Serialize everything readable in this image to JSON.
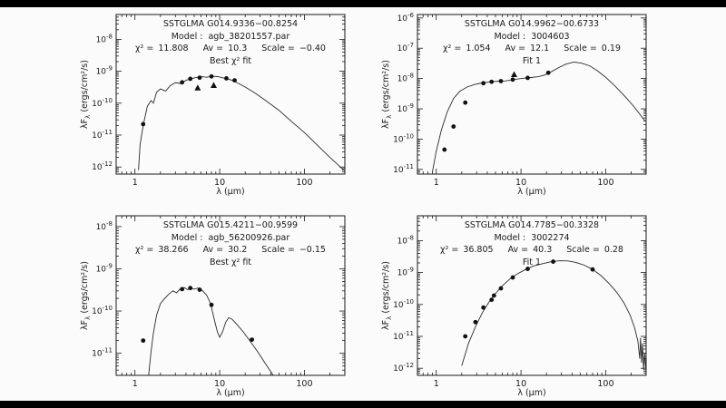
{
  "colors": {
    "background": "#fbfbfb",
    "letterbox": "#000000",
    "axis": "#1a1a1a",
    "curve": "#2a2a2a",
    "marker": "#111111"
  },
  "shared": {
    "xlabel": "λ (μm)",
    "ylabel_pre": "λF",
    "ylabel_sub": "λ",
    "ylabel_post": " (ergs/cm²/s)"
  },
  "panels": [
    {
      "title": "SSTGLMA G014.9336−00.8254",
      "model_label": "Model :",
      "model": "agb_38201557.par",
      "chi2_label": "χ² =",
      "chi2": "11.808",
      "av_label": "Av =",
      "av": "10.3",
      "scale_label": "Scale =",
      "scale": "−0.40",
      "fit_label": "Best χ² fit"
    },
    {
      "title": "SSTGLMA G014.9962−00.6733",
      "model_label": "Model :",
      "model": "3004603",
      "chi2_label": "χ² =",
      "chi2": "1.054",
      "av_label": "Av =",
      "av": "12.1",
      "scale_label": "Scale =",
      "scale": "0.19",
      "fit_label": "Fit 1"
    },
    {
      "title": "SSTGLMA G015.4211−00.9599",
      "model_label": "Model :",
      "model": "agb_56200926.par",
      "chi2_label": "χ² =",
      "chi2": "38.266",
      "av_label": "Av =",
      "av": "30.2",
      "scale_label": "Scale =",
      "scale": "−0.15",
      "fit_label": "Best χ² fit"
    },
    {
      "title": "SSTGLMA G014.7785−00.3328",
      "model_label": "Model :",
      "model": "3002274",
      "chi2_label": "χ² =",
      "chi2": "36.805",
      "av_label": "Av =",
      "av": "40.3",
      "scale_label": "Scale =",
      "scale": "0.28",
      "fit_label": "Fit 1"
    }
  ],
  "chart_data": [
    {
      "type": "line",
      "title": "SSTGLMA G014.9336−00.8254",
      "xlabel": "λ (μm)",
      "ylabel": "λFλ (ergs/cm²/s)",
      "xscale": "log",
      "yscale": "log",
      "xlim": [
        0.6,
        300
      ],
      "ylim": [
        6e-13,
        6e-08
      ],
      "xticks": [
        1,
        10,
        100
      ],
      "ytick_exponents": [
        -8,
        -9,
        -10,
        -11,
        -12
      ],
      "model_curve": [
        [
          1.1,
          8e-13
        ],
        [
          1.15,
          5e-12
        ],
        [
          1.25,
          2e-11
        ],
        [
          1.4,
          8e-11
        ],
        [
          1.55,
          1.2e-10
        ],
        [
          1.65,
          1e-10
        ],
        [
          1.8,
          2.2e-10
        ],
        [
          2.0,
          2.8e-10
        ],
        [
          2.3,
          2.4e-10
        ],
        [
          2.6,
          3.5e-10
        ],
        [
          3.0,
          4.4e-10
        ],
        [
          3.5,
          4.1e-10
        ],
        [
          4.0,
          5.2e-10
        ],
        [
          5.0,
          6.2e-10
        ],
        [
          6.0,
          6.8e-10
        ],
        [
          7.0,
          6.5e-10
        ],
        [
          8.0,
          7e-10
        ],
        [
          9.5,
          6.8e-10
        ],
        [
          11,
          6.2e-10
        ],
        [
          13,
          5.6e-10
        ],
        [
          16,
          4.4e-10
        ],
        [
          20,
          3.2e-10
        ],
        [
          26,
          2.1e-10
        ],
        [
          35,
          1.2e-10
        ],
        [
          50,
          6e-11
        ],
        [
          70,
          2.7e-11
        ],
        [
          100,
          1.2e-11
        ],
        [
          140,
          5e-12
        ],
        [
          200,
          2e-12
        ],
        [
          290,
          8e-13
        ]
      ],
      "photometry_circles": [
        [
          1.25,
          2.2e-11
        ],
        [
          3.6,
          4.5e-10
        ],
        [
          4.5,
          5.8e-10
        ],
        [
          5.8,
          6.3e-10
        ],
        [
          8.0,
          6.9e-10
        ],
        [
          12,
          6e-10
        ],
        [
          15,
          5.2e-10
        ]
      ],
      "photometry_triangles": [
        [
          5.5,
          3e-10
        ],
        [
          8.5,
          3.6e-10
        ]
      ]
    },
    {
      "type": "line",
      "title": "SSTGLMA G014.9962−00.6733",
      "xlabel": "λ (μm)",
      "ylabel": "λFλ (ergs/cm²/s)",
      "xscale": "log",
      "yscale": "log",
      "xlim": [
        0.6,
        300
      ],
      "ylim": [
        7e-12,
        1.3e-06
      ],
      "xticks": [
        1,
        10,
        100
      ],
      "ytick_exponents": [
        -6,
        -7,
        -8,
        -9,
        -10,
        -11
      ],
      "model_curve": [
        [
          0.9,
          8e-12
        ],
        [
          1.0,
          4e-11
        ],
        [
          1.15,
          2e-10
        ],
        [
          1.35,
          8e-10
        ],
        [
          1.6,
          2.2e-09
        ],
        [
          1.9,
          3.8e-09
        ],
        [
          2.3,
          5.2e-09
        ],
        [
          2.8,
          6.3e-09
        ],
        [
          3.5,
          7.2e-09
        ],
        [
          4.5,
          7.8e-09
        ],
        [
          5.5,
          8.2e-09
        ],
        [
          6.5,
          8.3e-09
        ],
        [
          7.5,
          8.8e-09
        ],
        [
          9,
          9.6e-09
        ],
        [
          11,
          1.03e-08
        ],
        [
          13,
          1.08e-08
        ],
        [
          16,
          1.15e-08
        ],
        [
          19,
          1.3e-08
        ],
        [
          23,
          1.7e-08
        ],
        [
          28,
          2.3e-08
        ],
        [
          34,
          3e-08
        ],
        [
          42,
          3.5e-08
        ],
        [
          52,
          3.2e-08
        ],
        [
          65,
          2.6e-08
        ],
        [
          80,
          1.8e-08
        ],
        [
          100,
          1.1e-08
        ],
        [
          130,
          5.5e-09
        ],
        [
          170,
          2.5e-09
        ],
        [
          220,
          1.1e-09
        ],
        [
          290,
          4e-10
        ]
      ],
      "photometry_circles": [
        [
          1.25,
          4.5e-11
        ],
        [
          1.6,
          2.6e-10
        ],
        [
          2.2,
          1.6e-09
        ],
        [
          3.6,
          7e-09
        ],
        [
          4.5,
          7.8e-09
        ],
        [
          5.8,
          8.2e-09
        ],
        [
          8.0,
          9.2e-09
        ],
        [
          12,
          1.05e-08
        ],
        [
          21,
          1.55e-08
        ]
      ],
      "photometry_triangles": [
        [
          8.3,
          1.35e-08
        ]
      ]
    },
    {
      "type": "line",
      "title": "SSTGLMA G015.4211−00.9599",
      "xlabel": "λ (μm)",
      "ylabel": "λFλ (ergs/cm²/s)",
      "xscale": "log",
      "yscale": "log",
      "xlim": [
        0.6,
        300
      ],
      "ylim": [
        3e-12,
        1.8e-08
      ],
      "xticks": [
        1,
        10,
        100
      ],
      "ytick_exponents": [
        -8,
        -9,
        -10,
        -11
      ],
      "model_curve": [
        [
          1.45,
          3e-12
        ],
        [
          1.55,
          1.1e-11
        ],
        [
          1.65,
          3e-11
        ],
        [
          1.8,
          8e-11
        ],
        [
          2.0,
          1.5e-10
        ],
        [
          2.2,
          1.9e-10
        ],
        [
          2.5,
          2.5e-10
        ],
        [
          2.8,
          3e-10
        ],
        [
          3.1,
          2.7e-10
        ],
        [
          3.4,
          3.3e-10
        ],
        [
          3.8,
          3.6e-10
        ],
        [
          4.2,
          3.2e-10
        ],
        [
          4.6,
          3.5e-10
        ],
        [
          5.0,
          3.3e-10
        ],
        [
          5.5,
          3.5e-10
        ],
        [
          6.2,
          3.1e-10
        ],
        [
          7.0,
          2.4e-10
        ],
        [
          7.8,
          1.5e-10
        ],
        [
          8.6,
          6.5e-11
        ],
        [
          9.4,
          3.2e-11
        ],
        [
          10.0,
          2.4e-11
        ],
        [
          10.8,
          3.2e-11
        ],
        [
          11.8,
          5.5e-11
        ],
        [
          12.8,
          7e-11
        ],
        [
          14,
          6.4e-11
        ],
        [
          16,
          4.8e-11
        ],
        [
          19,
          3.2e-11
        ],
        [
          23,
          1.9e-11
        ],
        [
          28,
          1.1e-11
        ],
        [
          35,
          5.5e-12
        ],
        [
          45,
          2.6e-12
        ],
        [
          60,
          1.2e-12
        ],
        [
          80,
          5e-13
        ]
      ],
      "photometry_circles": [
        [
          1.25,
          2e-11
        ],
        [
          3.6,
          3.3e-10
        ],
        [
          4.5,
          3.5e-10
        ],
        [
          5.8,
          3.2e-10
        ],
        [
          8.0,
          1.4e-10
        ],
        [
          24,
          2.1e-11
        ]
      ],
      "photometry_triangles": []
    },
    {
      "type": "line",
      "title": "SSTGLMA G014.7785−00.3328",
      "xlabel": "λ (μm)",
      "ylabel": "λFλ (ergs/cm²/s)",
      "xscale": "log",
      "yscale": "log",
      "xlim": [
        0.6,
        300
      ],
      "ylim": [
        6e-13,
        6e-08
      ],
      "xticks": [
        1,
        10,
        100
      ],
      "ytick_exponents": [
        -8,
        -9,
        -10,
        -11,
        -12
      ],
      "model_curve": [
        [
          2.0,
          1.2e-12
        ],
        [
          2.4,
          6e-12
        ],
        [
          2.9,
          2e-11
        ],
        [
          3.5,
          5.5e-11
        ],
        [
          4.2,
          1.2e-10
        ],
        [
          5.0,
          2.2e-10
        ],
        [
          6.0,
          3.8e-10
        ],
        [
          7.5,
          6.5e-10
        ],
        [
          9.0,
          9e-10
        ],
        [
          11,
          1.2e-09
        ],
        [
          14,
          1.6e-09
        ],
        [
          18,
          1.9e-09
        ],
        [
          23,
          2.2e-09
        ],
        [
          29,
          2.35e-09
        ],
        [
          36,
          2.3e-09
        ],
        [
          45,
          2.05e-09
        ],
        [
          56,
          1.7e-09
        ],
        [
          70,
          1.25e-09
        ],
        [
          88,
          8e-10
        ],
        [
          110,
          4.5e-10
        ],
        [
          135,
          2.4e-10
        ],
        [
          165,
          1.1e-10
        ],
        [
          195,
          4.5e-11
        ],
        [
          220,
          1.8e-11
        ],
        [
          240,
          7e-12
        ],
        [
          252,
          2e-12
        ],
        [
          258,
          9e-12
        ],
        [
          265,
          1.5e-12
        ],
        [
          272,
          6e-12
        ],
        [
          280,
          9e-13
        ],
        [
          288,
          3e-12
        ],
        [
          296,
          1e-12
        ]
      ],
      "photometry_circles": [
        [
          2.2,
          1e-11
        ],
        [
          2.9,
          2.8e-11
        ],
        [
          3.6,
          8e-11
        ],
        [
          4.5,
          1.4e-10
        ],
        [
          4.8,
          1.9e-10
        ],
        [
          5.8,
          3.2e-10
        ],
        [
          8.0,
          7e-10
        ],
        [
          12,
          1.3e-09
        ],
        [
          24,
          2.2e-09
        ],
        [
          70,
          1.25e-09
        ]
      ],
      "photometry_triangles": []
    }
  ]
}
